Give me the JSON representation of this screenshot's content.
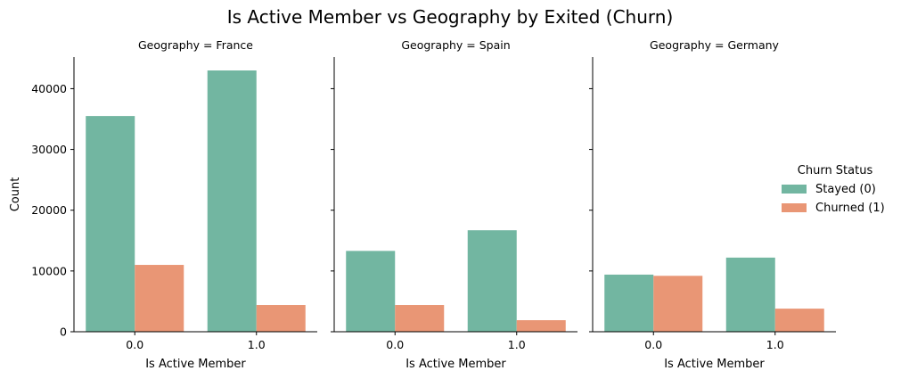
{
  "chart_data": {
    "type": "bar",
    "title": "Is Active Member vs Geography by Exited (Churn)",
    "facet_titles": [
      "Geography = France",
      "Geography = Spain",
      "Geography = Germany"
    ],
    "xlabel": "Is Active Member",
    "ylabel": "Count",
    "categories": [
      "0.0",
      "1.0"
    ],
    "yticks": [
      "0",
      "10000",
      "20000",
      "30000",
      "40000"
    ],
    "ylim": [
      0,
      45200
    ],
    "legend": {
      "title": "Churn Status",
      "placement": "right"
    },
    "colors": [
      "#72b6a1",
      "#e99675"
    ],
    "series": [
      {
        "name": "Stayed (0)",
        "values_by_facet": [
          [
            35500,
            43000
          ],
          [
            13300,
            16700
          ],
          [
            9400,
            12200
          ]
        ]
      },
      {
        "name": "Churned (1)",
        "values_by_facet": [
          [
            11000,
            4400
          ],
          [
            4400,
            1900
          ],
          [
            9200,
            3800
          ]
        ]
      }
    ]
  }
}
